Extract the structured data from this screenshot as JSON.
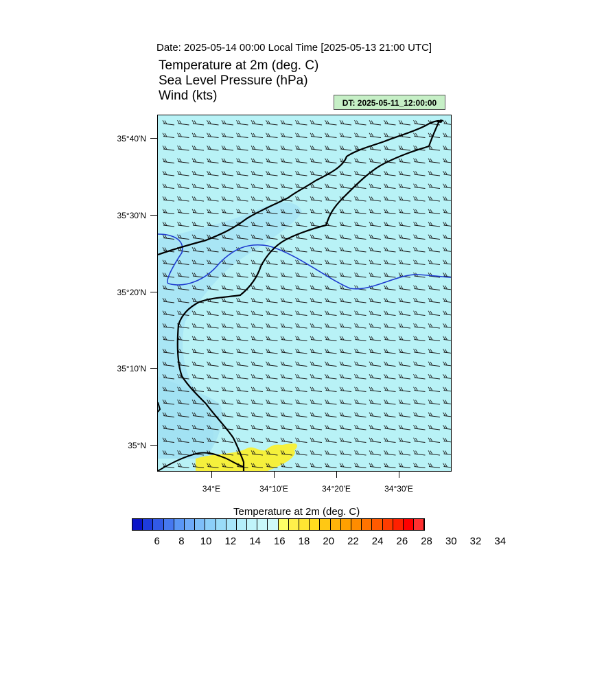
{
  "header": {
    "date_line": "Date: 2025-05-14  00:00 Local Time [2025-05-13  21:00 UTC]",
    "title_lines": [
      "Temperature at 2m   (deg. C)",
      "Sea Level Pressure   (hPa)",
      "Wind   (kts)"
    ],
    "dt_badge": "DT: 2025-05-11_12:00:00"
  },
  "map": {
    "lat_labels": [
      "35°40'N",
      "35°30'N",
      "35°20'N",
      "35°10'N",
      "35°N"
    ],
    "lon_labels": [
      "34°E",
      "34°10'E",
      "34°20'E",
      "34°30'E"
    ],
    "colors": {
      "sea_fill": "#b8f2f6",
      "cool_fill": "#a8e6f4",
      "warm_fill": "#f5f03c",
      "coast": "#000000",
      "isobar": "#1f3ccf"
    }
  },
  "colorbar": {
    "title": "Temperature at 2m  (deg. C)",
    "tick_labels": [
      "6",
      "8",
      "10",
      "12",
      "14",
      "16",
      "18",
      "20",
      "22",
      "24",
      "26",
      "28",
      "30",
      "32",
      "34"
    ],
    "colors": [
      "#0a14c8",
      "#1e3cdc",
      "#325ae6",
      "#4678f0",
      "#5a96f5",
      "#6eaaf8",
      "#7ebef8",
      "#8ccff8",
      "#9adcf8",
      "#a8e6fa",
      "#b4eefa",
      "#c0f4fa",
      "#c8f8fa",
      "#d0fafa",
      "#ffff66",
      "#fff04a",
      "#ffe632",
      "#ffdc1e",
      "#ffc814",
      "#ffb40a",
      "#ffa000",
      "#ff8c00",
      "#ff7300",
      "#ff5a00",
      "#ff3c00",
      "#ff2000",
      "#ff0000",
      "#ff3030"
    ],
    "first_label_cell": 1
  }
}
